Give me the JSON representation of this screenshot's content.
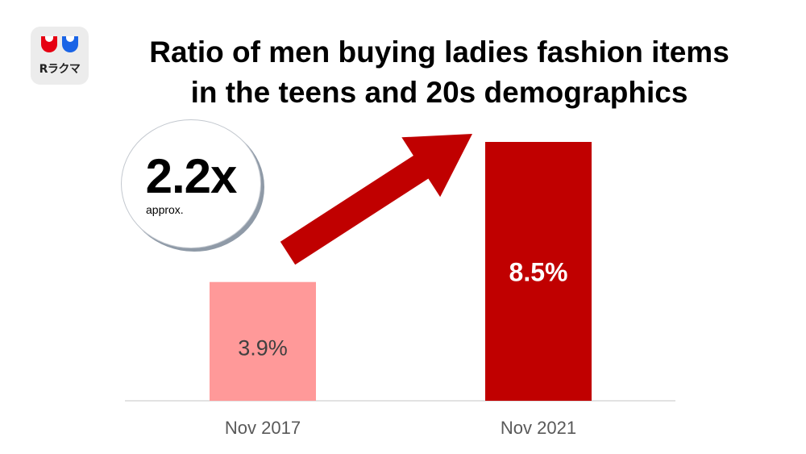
{
  "logo": {
    "text": "Rラクマ"
  },
  "chart_data": {
    "type": "bar",
    "title_lines": [
      "Ratio of men buying ladies fashion items",
      "in the teens and 20s demographics"
    ],
    "categories": [
      "Nov 2017",
      "Nov 2021"
    ],
    "values": [
      3.9,
      8.5
    ],
    "data_labels": [
      "3.9%",
      "8.5%"
    ],
    "colors": [
      "#ff9999",
      "#c00000"
    ],
    "label_colors": [
      "#404040",
      "#ffffff"
    ],
    "ylim": [
      0,
      8.5
    ],
    "grid": false,
    "annotation": {
      "value": "2.2x",
      "sub": "approx."
    },
    "arrow_color": "#c00000"
  }
}
